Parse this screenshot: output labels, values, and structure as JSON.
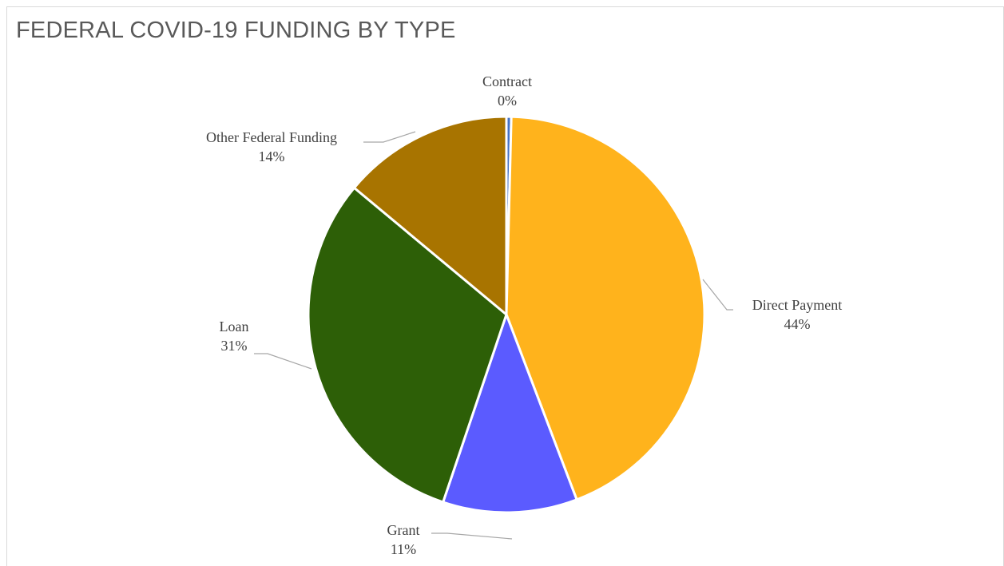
{
  "chart_data": {
    "type": "pie",
    "title": "FEDERAL COVID-19 FUNDING BY TYPE",
    "slices": [
      {
        "label": "Contract",
        "value": 0.4,
        "percent_label": "0%",
        "color": "#4472c4"
      },
      {
        "label": "Direct Payment",
        "value": 44,
        "percent_label": "44%",
        "color": "#ffb31c"
      },
      {
        "label": "Grant",
        "value": 11,
        "percent_label": "11%",
        "color": "#5b5bff"
      },
      {
        "label": "Loan",
        "value": 31,
        "percent_label": "31%",
        "color": "#2d5f07"
      },
      {
        "label": "Other Federal Funding",
        "value": 14,
        "percent_label": "14%",
        "color": "#a87400"
      }
    ],
    "start_angle_deg": 0,
    "direction": "clockwise",
    "legend": "none"
  }
}
